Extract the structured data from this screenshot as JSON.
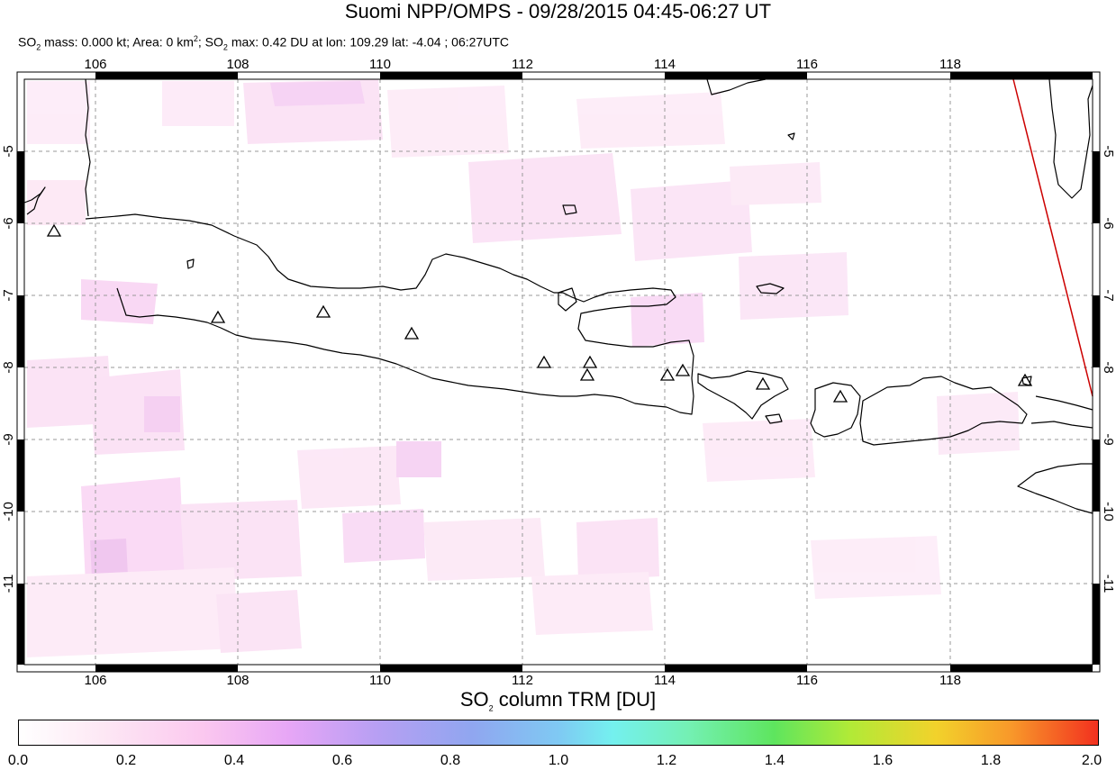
{
  "title": "Suomi NPP/OMPS - 09/28/2015 04:45-06:27 UT",
  "subtitle": {
    "p1": "SO",
    "s1": "2",
    "p2": " mass: 0.000 kt; Area: 0 km",
    "sup": "2",
    "p3": "; SO",
    "s2": "2",
    "p4": " max: 0.42 DU at lon: 109.29 lat: -4.04 ; 06:27UTC"
  },
  "map": {
    "lon_range": [
      105,
      120
    ],
    "lat_range": [
      -12,
      -4
    ],
    "lon_ticks": [
      "106",
      "108",
      "110",
      "112",
      "114",
      "116",
      "118"
    ],
    "lat_ticks": [
      "-5",
      "-6",
      "-7",
      "-8",
      "-9",
      "-10",
      "-11"
    ],
    "grid": "dashed",
    "coastline_color": "#000000",
    "orbit_edge_color": "#cc0000",
    "volcano_marker": "open-triangle"
  },
  "colorbar": {
    "title_pre": "SO",
    "title_sub": "2",
    "title_post": " column TRM [DU]",
    "ticks": [
      "0.0",
      "0.2",
      "0.4",
      "0.6",
      "0.8",
      "1.0",
      "1.2",
      "1.4",
      "1.6",
      "1.8",
      "2.0"
    ],
    "range": [
      0,
      2
    ]
  }
}
